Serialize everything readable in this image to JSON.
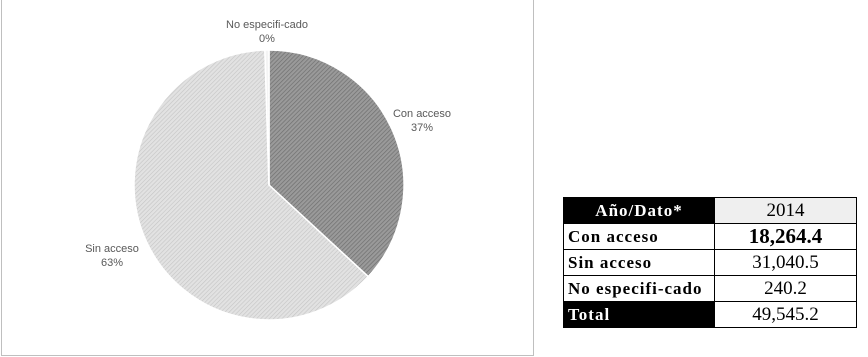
{
  "chart_data": {
    "type": "pie",
    "slices": [
      {
        "name": "Con acceso",
        "percent_label": "37%",
        "value": 18264.4,
        "color": "#8c8c8c"
      },
      {
        "name": "Sin acceso",
        "percent_label": "63%",
        "value": 31040.5,
        "color": "#d9d9d9"
      },
      {
        "name": "No especifi-cado",
        "percent_label": "0%",
        "value": 240.2,
        "color": "#f2f2f2"
      }
    ]
  },
  "table": {
    "header_label": "Año/Dato*",
    "year": "2014",
    "rows": [
      {
        "label": "Con acceso",
        "value": "18,264.4"
      },
      {
        "label": "Sin acceso",
        "value": "31,040.5"
      },
      {
        "label": "No especifi-cado",
        "value": "240.2"
      },
      {
        "label": "Total",
        "value": "49,545.2"
      }
    ]
  }
}
